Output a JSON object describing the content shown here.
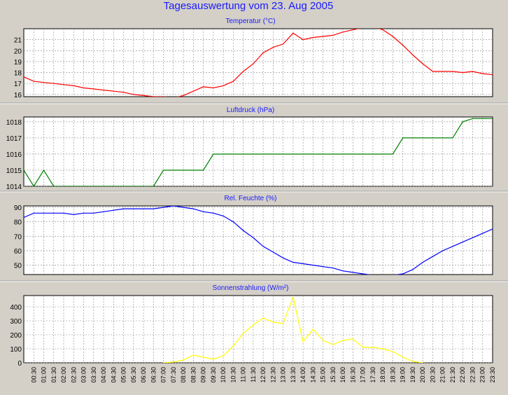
{
  "window": {
    "title": "Tagesauswertung vom 23. Aug 2005"
  },
  "chart_data": [
    {
      "type": "line",
      "title": "Temperatur (°C)",
      "ylim": [
        15.8,
        22.0
      ],
      "yticks": [
        16,
        17,
        18,
        19,
        20,
        21
      ],
      "color": "#ff0000",
      "grid": true,
      "x": [
        0,
        1,
        2,
        3,
        4,
        5,
        6,
        7,
        8,
        9,
        10,
        11,
        12,
        13,
        14,
        15,
        16,
        17,
        18,
        19,
        20,
        21,
        22,
        23,
        24,
        25,
        26,
        27,
        28,
        29,
        30,
        31,
        32,
        33,
        34,
        35,
        36,
        37,
        38,
        39,
        40,
        41,
        42,
        43,
        44,
        45,
        46,
        47
      ],
      "values": [
        17.6,
        17.2,
        17.1,
        17.0,
        16.9,
        16.8,
        16.6,
        16.5,
        16.4,
        16.3,
        16.2,
        16.0,
        15.9,
        15.8,
        15.8,
        15.7,
        15.9,
        16.3,
        16.7,
        16.6,
        16.8,
        17.2,
        18.1,
        18.8,
        19.8,
        20.3,
        20.6,
        21.6,
        21.0,
        21.2,
        21.3,
        21.4,
        21.7,
        21.9,
        22.1,
        22.2,
        21.9,
        21.3,
        20.5,
        19.6,
        18.8,
        18.1,
        18.1,
        18.1,
        18.0,
        18.1,
        17.9,
        17.8
      ]
    },
    {
      "type": "line",
      "title": "Luftdruck (hPa)",
      "ylim": [
        1014,
        1018.3
      ],
      "yticks": [
        1014,
        1015,
        1016,
        1017,
        1018
      ],
      "color": "#008000",
      "grid": true,
      "x": [
        0,
        1,
        2,
        3,
        4,
        5,
        6,
        7,
        8,
        9,
        10,
        11,
        12,
        13,
        14,
        15,
        16,
        17,
        18,
        19,
        20,
        21,
        22,
        23,
        24,
        25,
        26,
        27,
        28,
        29,
        30,
        31,
        32,
        33,
        34,
        35,
        36,
        37,
        38,
        39,
        40,
        41,
        42,
        43,
        44,
        45,
        46,
        47
      ],
      "values": [
        1015,
        1014,
        1015,
        1014,
        1014,
        1014,
        1014,
        1014,
        1014,
        1014,
        1014,
        1014,
        1014,
        1014,
        1015,
        1015,
        1015,
        1015,
        1015,
        1016,
        1016,
        1016,
        1016,
        1016,
        1016,
        1016,
        1016,
        1016,
        1016,
        1016,
        1016,
        1016,
        1016,
        1016,
        1016,
        1016,
        1016,
        1016,
        1017,
        1017,
        1017,
        1017,
        1017,
        1017,
        1018,
        1018.2,
        1018.2,
        1018.2
      ]
    },
    {
      "type": "line",
      "title": "Rel. Feuchte (%)",
      "ylim": [
        43.5,
        91
      ],
      "yticks": [
        50,
        60,
        70,
        80,
        90
      ],
      "color": "#0000ff",
      "grid": true,
      "x": [
        0,
        1,
        2,
        3,
        4,
        5,
        6,
        7,
        8,
        9,
        10,
        11,
        12,
        13,
        14,
        15,
        16,
        17,
        18,
        19,
        20,
        21,
        22,
        23,
        24,
        25,
        26,
        27,
        28,
        29,
        30,
        31,
        32,
        33,
        34,
        35,
        36,
        37,
        38,
        39,
        40,
        41,
        42,
        43,
        44,
        45,
        46,
        47
      ],
      "values": [
        83,
        86,
        86,
        86,
        86,
        85,
        86,
        86,
        87,
        88,
        89,
        89,
        89,
        89,
        90,
        91,
        90,
        89,
        87,
        86,
        84,
        80,
        74,
        69,
        63,
        59,
        55,
        52,
        51,
        50,
        49,
        48,
        46,
        45,
        44,
        43,
        43,
        43,
        44,
        47,
        52,
        56,
        60,
        63,
        66,
        69,
        72,
        75
      ]
    },
    {
      "type": "line",
      "title": "Sonnenstrahlung (W/m²)",
      "ylim": [
        0,
        480
      ],
      "yticks": [
        0,
        100,
        200,
        300,
        400
      ],
      "color": "#ffff00",
      "grid": true,
      "x": [
        14,
        15,
        16,
        17,
        18,
        19,
        20,
        21,
        22,
        23,
        24,
        25,
        26,
        27,
        28,
        29,
        30,
        31,
        32,
        33,
        34,
        35,
        36,
        37,
        38,
        39,
        40
      ],
      "values": [
        0,
        5,
        20,
        55,
        40,
        25,
        50,
        120,
        210,
        270,
        320,
        290,
        280,
        470,
        150,
        240,
        160,
        130,
        160,
        170,
        110,
        110,
        100,
        80,
        40,
        10,
        0
      ]
    }
  ],
  "x_axis": {
    "tick_labels": [
      "00:30",
      "01:00",
      "01:30",
      "02:00",
      "02:30",
      "03:00",
      "03:30",
      "04:00",
      "04:30",
      "05:00",
      "05:30",
      "06:00",
      "06:30",
      "07:00",
      "07:30",
      "08:00",
      "08:30",
      "09:00",
      "09:30",
      "10:00",
      "10:30",
      "11:00",
      "11:30",
      "12:00",
      "12:30",
      "13:00",
      "13:30",
      "14:00",
      "14:30",
      "15:00",
      "15:30",
      "16:00",
      "16:30",
      "17:00",
      "17:30",
      "18:00",
      "18:30",
      "19:00",
      "19:30",
      "20:00",
      "20:30",
      "21:00",
      "21:30",
      "22:00",
      "22:30",
      "23:00",
      "23:30"
    ]
  }
}
